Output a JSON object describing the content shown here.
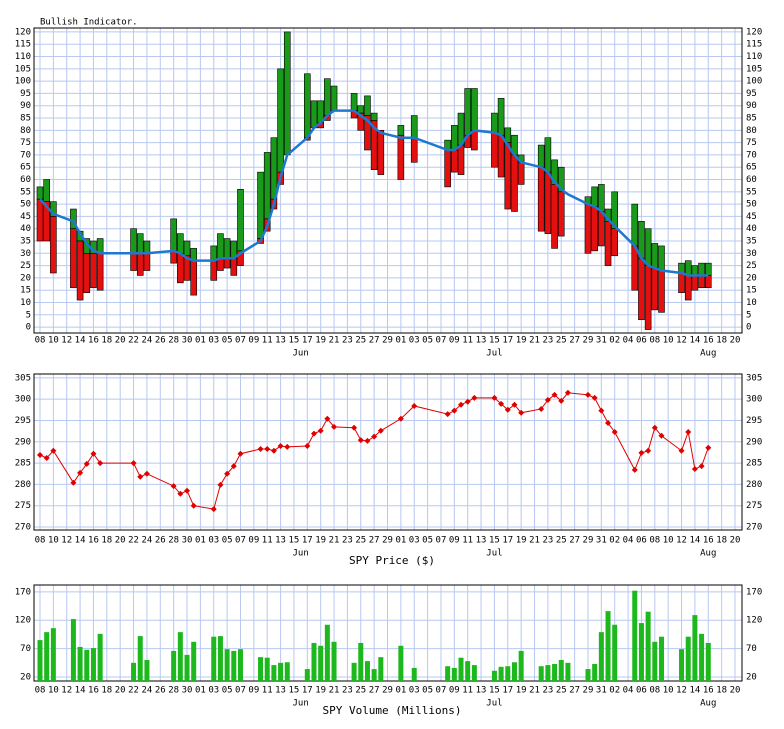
{
  "chart_data": [
    {
      "type": "range_bar",
      "title": "Bullish Indicator.",
      "x": [
        "05-08",
        "05-09",
        "05-10",
        "05-13",
        "05-14",
        "05-15",
        "05-16",
        "05-17",
        "05-22",
        "05-23",
        "05-24",
        "05-28",
        "05-29",
        "05-30",
        "05-31",
        "06-03",
        "06-04",
        "06-05",
        "06-06",
        "06-07",
        "06-10",
        "06-11",
        "06-12",
        "06-13",
        "06-14",
        "06-17",
        "06-18",
        "06-19",
        "06-20",
        "06-21",
        "06-24",
        "06-25",
        "06-26",
        "06-27",
        "06-28",
        "07-01",
        "07-03",
        "07-08",
        "07-09",
        "07-10",
        "07-11",
        "07-12",
        "07-15",
        "07-16",
        "07-17",
        "07-18",
        "07-19",
        "07-22",
        "07-23",
        "07-24",
        "07-25",
        "07-26",
        "07-29",
        "07-30",
        "07-31",
        "08-01",
        "08-02",
        "08-05",
        "08-06",
        "08-07",
        "08-08",
        "08-09",
        "08-12",
        "08-13",
        "08-14",
        "08-15",
        "08-16"
      ],
      "high": [
        57,
        60,
        51,
        48,
        39,
        36,
        35,
        36,
        40,
        38,
        35,
        44,
        38,
        35,
        32,
        33,
        38,
        36,
        35,
        56,
        63,
        71,
        77,
        105,
        120,
        103,
        92,
        92,
        101,
        98,
        95,
        90,
        94,
        87,
        null,
        82,
        86,
        76,
        82,
        87,
        97,
        97,
        87,
        93,
        81,
        78,
        70,
        74,
        77,
        68,
        65,
        null,
        53,
        57,
        58,
        48,
        55,
        50,
        43,
        40,
        34,
        33,
        26,
        27,
        25,
        26,
        26
      ],
      "split": [
        52,
        51,
        45,
        40,
        35,
        30,
        30,
        30,
        30,
        30,
        30,
        31,
        30,
        29,
        27,
        27,
        28,
        28,
        28,
        31,
        36,
        44,
        52,
        63,
        70,
        77,
        81,
        83,
        86,
        88,
        88,
        87,
        86,
        84,
        80,
        78,
        77,
        72,
        72,
        74,
        78,
        80,
        79,
        78,
        75,
        70,
        67,
        65,
        63,
        58,
        55,
        null,
        50,
        49,
        47,
        43,
        40,
        33,
        28,
        25,
        24,
        23,
        22,
        21,
        21,
        21,
        21
      ],
      "low": [
        35,
        35,
        22,
        16,
        11,
        14,
        16,
        15,
        23,
        21,
        23,
        26,
        18,
        19,
        13,
        19,
        23,
        24,
        21,
        25,
        34,
        39,
        48,
        58,
        null,
        76,
        null,
        81,
        84,
        null,
        85,
        80,
        72,
        64,
        62,
        60,
        67,
        57,
        63,
        62,
        73,
        72,
        65,
        61,
        48,
        47,
        58,
        39,
        38,
        32,
        37,
        null,
        30,
        31,
        33,
        25,
        29,
        15,
        3,
        -1,
        7,
        6,
        14,
        11,
        15,
        16,
        16
      ],
      "up_color": "#1a9a1a",
      "down_color": "#e41010",
      "line": {
        "color": "#1e78d0",
        "values": [
          52,
          49,
          46,
          43,
          38,
          34,
          31,
          30,
          30,
          30,
          30,
          31,
          30,
          28,
          27,
          27,
          28,
          28,
          28,
          30,
          35,
          41,
          50,
          61,
          70,
          77,
          81,
          83,
          86,
          88,
          88,
          86,
          84,
          81,
          79,
          77,
          77,
          72,
          72,
          74,
          78,
          80,
          79,
          78,
          74,
          70,
          67,
          65,
          63,
          59,
          56,
          54,
          50,
          49,
          47,
          44,
          41,
          33,
          28,
          25,
          24,
          23,
          22,
          21,
          21,
          21,
          21
        ]
      },
      "xlim": [
        "05-08",
        "08-20"
      ],
      "ylim": [
        -2.4,
        121.6
      ],
      "yticks": [
        0,
        5,
        10,
        15,
        20,
        25,
        30,
        35,
        40,
        45,
        50,
        55,
        60,
        65,
        70,
        75,
        80,
        85,
        90,
        95,
        100,
        105,
        110,
        115,
        120
      ],
      "xticks": [
        {
          "value": "05-08",
          "label": "08"
        },
        {
          "value": "05-10",
          "label": "10"
        },
        {
          "value": "05-12",
          "label": "12"
        },
        {
          "value": "05-14",
          "label": "14"
        },
        {
          "value": "05-16",
          "label": "16"
        },
        {
          "value": "05-18",
          "label": "18"
        },
        {
          "value": "05-20",
          "label": "20"
        },
        {
          "value": "05-22",
          "label": "22"
        },
        {
          "value": "05-24",
          "label": "24"
        },
        {
          "value": "05-26",
          "label": "26"
        },
        {
          "value": "05-28",
          "label": "28"
        },
        {
          "value": "05-30",
          "label": "30"
        },
        {
          "value": "06-01",
          "label": "01"
        },
        {
          "value": "06-03",
          "label": "03"
        },
        {
          "value": "06-05",
          "label": "05"
        },
        {
          "value": "06-07",
          "label": "07"
        },
        {
          "value": "06-09",
          "label": "09"
        },
        {
          "value": "06-11",
          "label": "11"
        },
        {
          "value": "06-13",
          "label": "13"
        },
        {
          "value": "06-15",
          "label": "15"
        },
        {
          "value": "06-17",
          "label": "17"
        },
        {
          "value": "06-19",
          "label": "19"
        },
        {
          "value": "06-21",
          "label": "21"
        },
        {
          "value": "06-23",
          "label": "23"
        },
        {
          "value": "06-25",
          "label": "25"
        },
        {
          "value": "06-27",
          "label": "27"
        },
        {
          "value": "06-29",
          "label": "29"
        },
        {
          "value": "07-01",
          "label": "01"
        },
        {
          "value": "07-03",
          "label": "03"
        },
        {
          "value": "07-05",
          "label": "05"
        },
        {
          "value": "07-07",
          "label": "07"
        },
        {
          "value": "07-09",
          "label": "09"
        },
        {
          "value": "07-11",
          "label": "11"
        },
        {
          "value": "07-13",
          "label": "13"
        },
        {
          "value": "07-15",
          "label": "15"
        },
        {
          "value": "07-17",
          "label": "17"
        },
        {
          "value": "07-19",
          "label": "19"
        },
        {
          "value": "07-21",
          "label": "21"
        },
        {
          "value": "07-23",
          "label": "23"
        },
        {
          "value": "07-25",
          "label": "25"
        },
        {
          "value": "07-27",
          "label": "27"
        },
        {
          "value": "07-29",
          "label": "29"
        },
        {
          "value": "07-31",
          "label": "31"
        },
        {
          "value": "08-02",
          "label": "02"
        },
        {
          "value": "08-04",
          "label": "04"
        },
        {
          "value": "08-06",
          "label": "06"
        },
        {
          "value": "08-08",
          "label": "08"
        },
        {
          "value": "08-10",
          "label": "10"
        },
        {
          "value": "08-12",
          "label": "12"
        },
        {
          "value": "08-14",
          "label": "14"
        },
        {
          "value": "08-16",
          "label": "16"
        },
        {
          "value": "08-18",
          "label": "18"
        },
        {
          "value": "08-20",
          "label": "20"
        }
      ],
      "month_labels": [
        {
          "value": "06-16",
          "label": "Jun"
        },
        {
          "value": "07-15",
          "label": "Jul"
        },
        {
          "value": "08-16",
          "label": "Aug"
        }
      ],
      "grid": true
    },
    {
      "type": "line",
      "xlabel": "SPY Price ($)",
      "color": "#e00000",
      "x": [
        "05-08",
        "05-09",
        "05-10",
        "05-13",
        "05-14",
        "05-15",
        "05-16",
        "05-17",
        "05-22",
        "05-23",
        "05-24",
        "05-28",
        "05-29",
        "05-30",
        "05-31",
        "06-03",
        "06-04",
        "06-05",
        "06-06",
        "06-07",
        "06-10",
        "06-11",
        "06-12",
        "06-13",
        "06-14",
        "06-17",
        "06-18",
        "06-19",
        "06-20",
        "06-21",
        "06-24",
        "06-25",
        "06-26",
        "06-27",
        "06-28",
        "07-01",
        "07-03",
        "07-08",
        "07-09",
        "07-10",
        "07-11",
        "07-12",
        "07-15",
        "07-16",
        "07-17",
        "07-18",
        "07-19",
        "07-22",
        "07-23",
        "07-24",
        "07-25",
        "07-26",
        "07-29",
        "07-30",
        "07-31",
        "08-01",
        "08-02",
        "08-05",
        "08-06",
        "08-07",
        "08-08",
        "08-09",
        "08-12",
        "08-13",
        "08-14",
        "08-15",
        "08-16"
      ],
      "values": [
        286.9,
        286.2,
        287.9,
        280.4,
        282.7,
        284.8,
        287.2,
        285.0,
        285.0,
        281.8,
        282.5,
        279.6,
        277.8,
        278.5,
        275.0,
        274.2,
        279.9,
        282.5,
        284.3,
        287.2,
        288.3,
        288.3,
        287.9,
        289.0,
        288.8,
        289.0,
        291.9,
        292.6,
        295.4,
        293.5,
        293.3,
        290.4,
        290.2,
        291.2,
        292.6,
        295.4,
        298.4,
        296.5,
        297.3,
        298.7,
        299.4,
        300.3,
        300.3,
        298.9,
        297.5,
        298.7,
        296.8,
        297.7,
        299.8,
        301.0,
        299.6,
        301.5,
        301.0,
        300.3,
        297.3,
        294.4,
        292.3,
        283.4,
        287.4,
        287.9,
        293.3,
        291.4,
        287.9,
        292.3,
        283.6,
        284.3,
        288.6
      ],
      "ylim": [
        269.3,
        305.9
      ],
      "yticks": [
        270,
        275,
        280,
        285,
        290,
        295,
        300,
        305
      ],
      "grid": true
    },
    {
      "type": "bar",
      "xlabel": "SPY Volume (Millions)",
      "color": "#1db81d",
      "x": [
        "05-08",
        "05-09",
        "05-10",
        "05-13",
        "05-14",
        "05-15",
        "05-16",
        "05-17",
        "05-22",
        "05-23",
        "05-24",
        "05-28",
        "05-29",
        "05-30",
        "05-31",
        "06-03",
        "06-04",
        "06-05",
        "06-06",
        "06-07",
        "06-10",
        "06-11",
        "06-12",
        "06-13",
        "06-14",
        "06-17",
        "06-18",
        "06-19",
        "06-20",
        "06-21",
        "06-24",
        "06-25",
        "06-26",
        "06-27",
        "06-28",
        "07-01",
        "07-03",
        "07-08",
        "07-09",
        "07-10",
        "07-11",
        "07-12",
        "07-15",
        "07-16",
        "07-17",
        "07-18",
        "07-19",
        "07-22",
        "07-23",
        "07-24",
        "07-25",
        "07-26",
        "07-29",
        "07-30",
        "07-31",
        "08-01",
        "08-02",
        "08-05",
        "08-06",
        "08-07",
        "08-08",
        "08-09",
        "08-12",
        "08-13",
        "08-14",
        "08-15",
        "08-16"
      ],
      "values": [
        85,
        99,
        106,
        122,
        73,
        68,
        71,
        96,
        45,
        92,
        50,
        66,
        99,
        59,
        82,
        91,
        92,
        69,
        66,
        69,
        55,
        54,
        41,
        45,
        46,
        34,
        80,
        75,
        112,
        82,
        45,
        80,
        48,
        34,
        55,
        75,
        36,
        39,
        36,
        54,
        48,
        41,
        31,
        38,
        39,
        46,
        66,
        39,
        41,
        43,
        50,
        45,
        34,
        43,
        99,
        136,
        112,
        172,
        115,
        135,
        82,
        91,
        69,
        91,
        129,
        96,
        80
      ],
      "ylim": [
        13,
        182
      ],
      "yticks": [
        20,
        70,
        120,
        170
      ],
      "grid": true
    }
  ]
}
